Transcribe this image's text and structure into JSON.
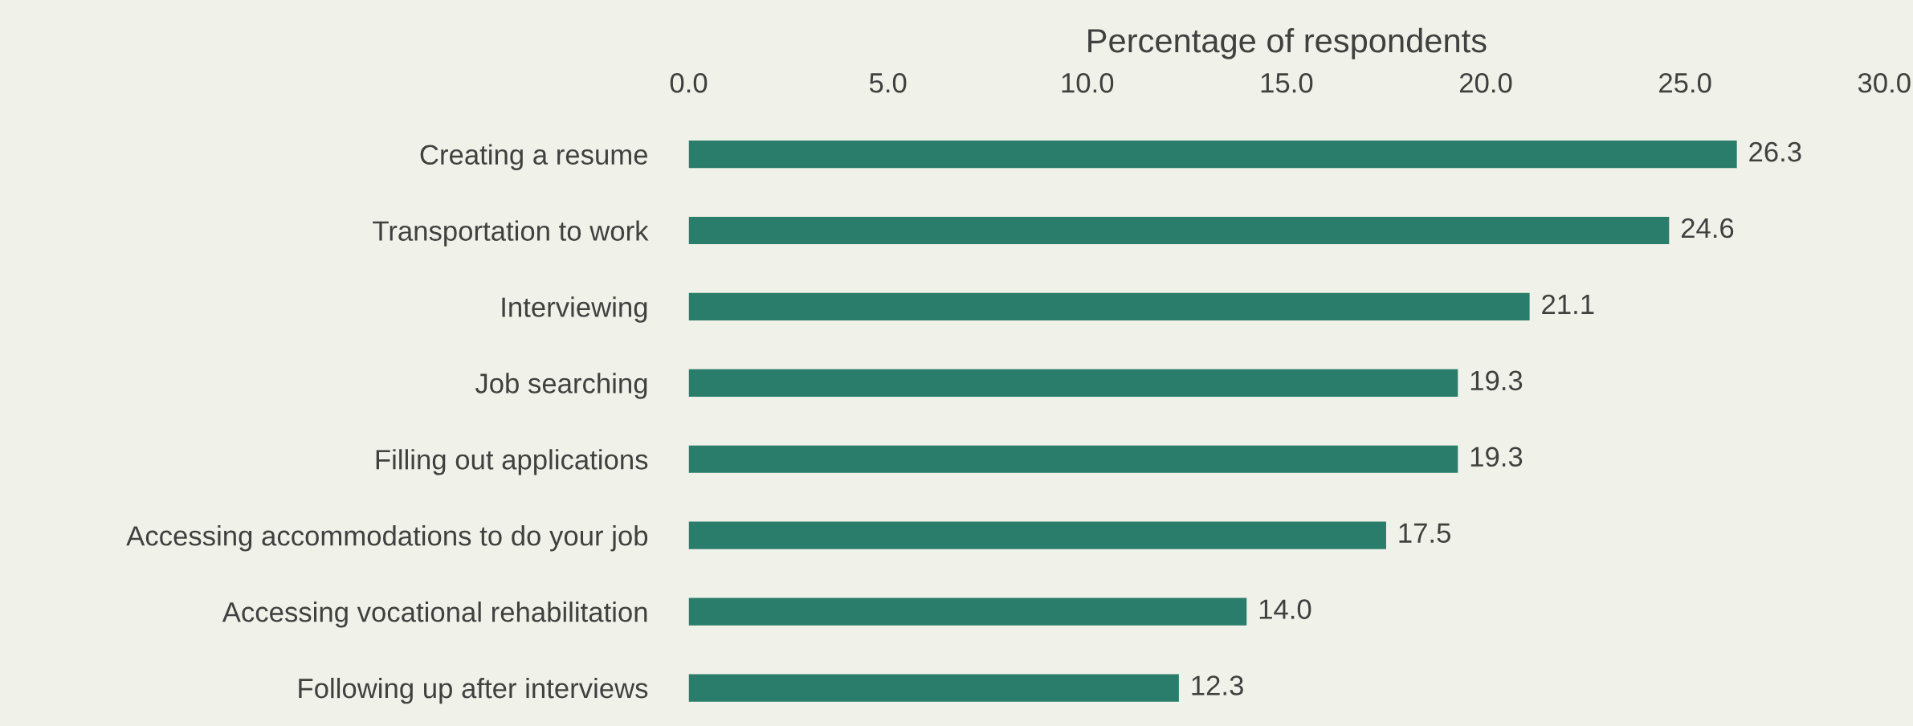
{
  "chart_data": {
    "type": "bar",
    "orientation": "horizontal",
    "xlabel": "Percentage of respondents",
    "categories": [
      "Creating a resume",
      "Transportation to work",
      "Interviewing",
      "Job searching",
      "Filling out applications",
      "Accessing accommodations to do your job",
      "Accessing vocational rehabilitation",
      "Following up after interviews"
    ],
    "values": [
      26.3,
      24.6,
      21.1,
      19.3,
      19.3,
      17.5,
      14.0,
      12.3
    ],
    "value_labels": [
      "26.3",
      "24.6",
      "21.1",
      "19.3",
      "19.3",
      "17.5",
      "14.0",
      "12.3"
    ],
    "color": "#2a7d6a",
    "xlim": [
      0,
      30
    ],
    "xticks": [
      {
        "value": 0,
        "label": "0.0"
      },
      {
        "value": 5,
        "label": "5.0"
      },
      {
        "value": 10,
        "label": "10.0"
      },
      {
        "value": 15,
        "label": "15.0"
      },
      {
        "value": 20,
        "label": "20.0"
      },
      {
        "value": 25,
        "label": "25.0"
      },
      {
        "value": 30,
        "label": "30.0"
      }
    ],
    "grid": false,
    "legend": false
  }
}
